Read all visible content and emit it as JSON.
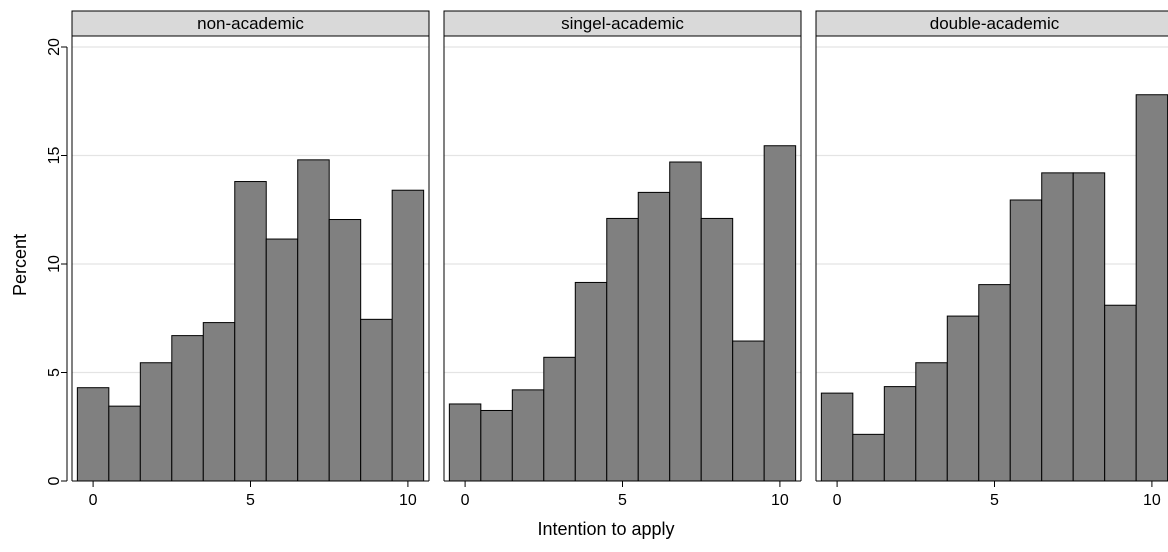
{
  "chart_data": {
    "type": "bar",
    "xlabel": "Intention to apply",
    "ylabel": "Percent",
    "ylim": [
      0,
      20
    ],
    "yticks": [
      0,
      5,
      10,
      15,
      20
    ],
    "xlim": [
      -0.5,
      10.5
    ],
    "xticks": [
      0,
      5,
      10
    ],
    "grid": true,
    "categories": [
      0,
      1,
      2,
      3,
      4,
      5,
      6,
      7,
      8,
      9,
      10
    ],
    "panels": [
      {
        "title": "non-academic",
        "values": [
          4.3,
          3.45,
          5.45,
          6.7,
          7.3,
          13.8,
          11.15,
          14.8,
          12.05,
          7.45,
          13.4
        ]
      },
      {
        "title": "singel-academic",
        "values": [
          3.55,
          3.25,
          4.2,
          5.7,
          9.15,
          12.1,
          13.3,
          14.7,
          12.1,
          6.45,
          15.45
        ]
      },
      {
        "title": "double-academic",
        "values": [
          4.05,
          2.15,
          4.35,
          5.45,
          7.6,
          9.05,
          12.95,
          14.2,
          14.2,
          8.1,
          17.8
        ]
      }
    ],
    "colors": {
      "bar_fill": "#808080",
      "bar_stroke": "#000000",
      "strip_fill": "#d9d9d9",
      "grid": "#e4e4e4",
      "background": "#ffffff"
    }
  }
}
